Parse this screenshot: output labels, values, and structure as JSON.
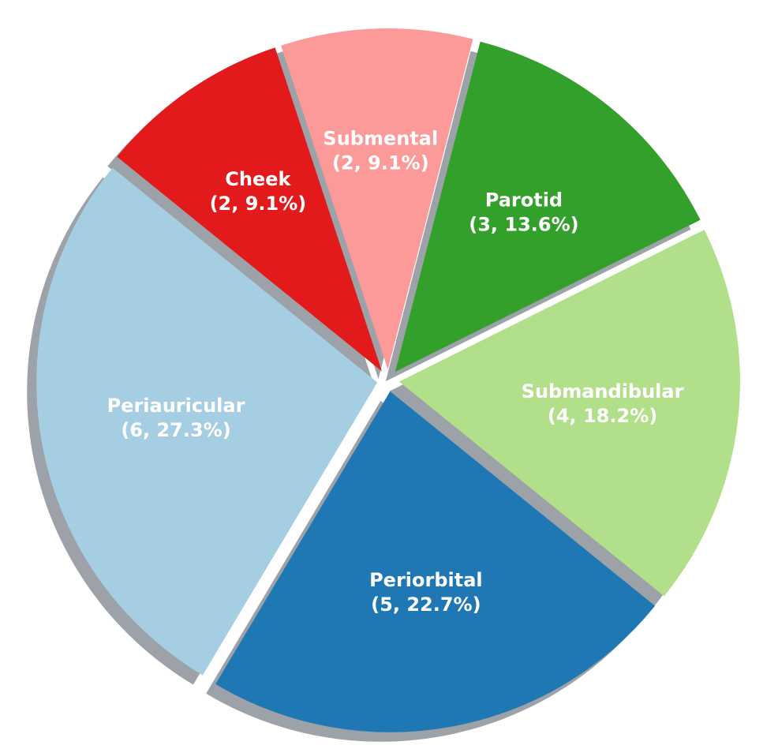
{
  "chart_data": {
    "type": "pie",
    "categories": [
      "Periauricular",
      "Periorbital",
      "Submandibular",
      "Parotid",
      "Submental",
      "Cheek"
    ],
    "values": [
      6,
      5,
      4,
      3,
      2,
      2
    ],
    "value_labels": [
      "(6, 27.3%)",
      "(5, 22.7%)",
      "(4, 18.2%)",
      "(3, 13.6%)",
      "(2, 9.1%)",
      "(2, 9.1%)"
    ],
    "colors": [
      "#a6cee3",
      "#1f78b4",
      "#b2df8a",
      "#33a02c",
      "#fb9a99",
      "#e31a1c"
    ]
  }
}
